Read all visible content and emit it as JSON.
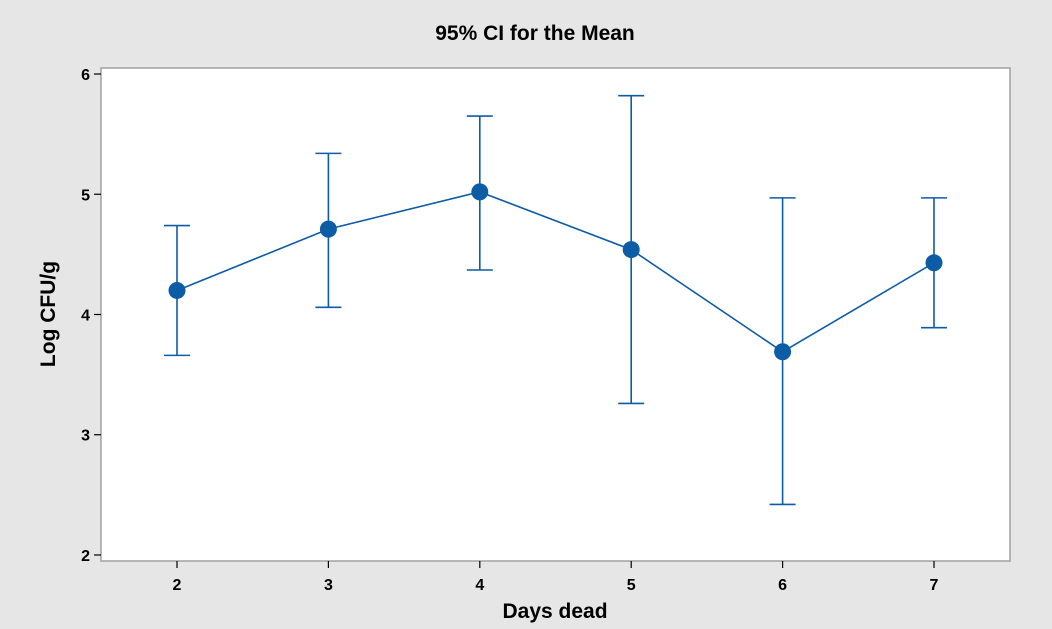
{
  "chart_data": {
    "type": "line",
    "title": "95% CI for the Mean",
    "xlabel": "Days dead",
    "ylabel": "Log CFU/g",
    "x": [
      2,
      3,
      4,
      5,
      6,
      7
    ],
    "series": [
      {
        "values": [
          4.2,
          4.71,
          5.02,
          4.54,
          3.69,
          4.43
        ],
        "ci_lower": [
          3.66,
          4.06,
          4.37,
          3.26,
          2.42,
          3.89
        ],
        "ci_upper": [
          4.74,
          5.34,
          5.65,
          5.82,
          4.97,
          4.97
        ]
      }
    ],
    "ylim": [
      1.95,
      6.05
    ],
    "y_ticks": [
      2,
      3,
      4,
      5,
      6
    ],
    "x_ticks": [
      2,
      3,
      4,
      5,
      6,
      7
    ],
    "grid": false,
    "colors": {
      "series": "#0d5ca6",
      "background": "#e6e6e6",
      "plot_area": "#ffffff",
      "frame": "#a0a0a0"
    }
  }
}
